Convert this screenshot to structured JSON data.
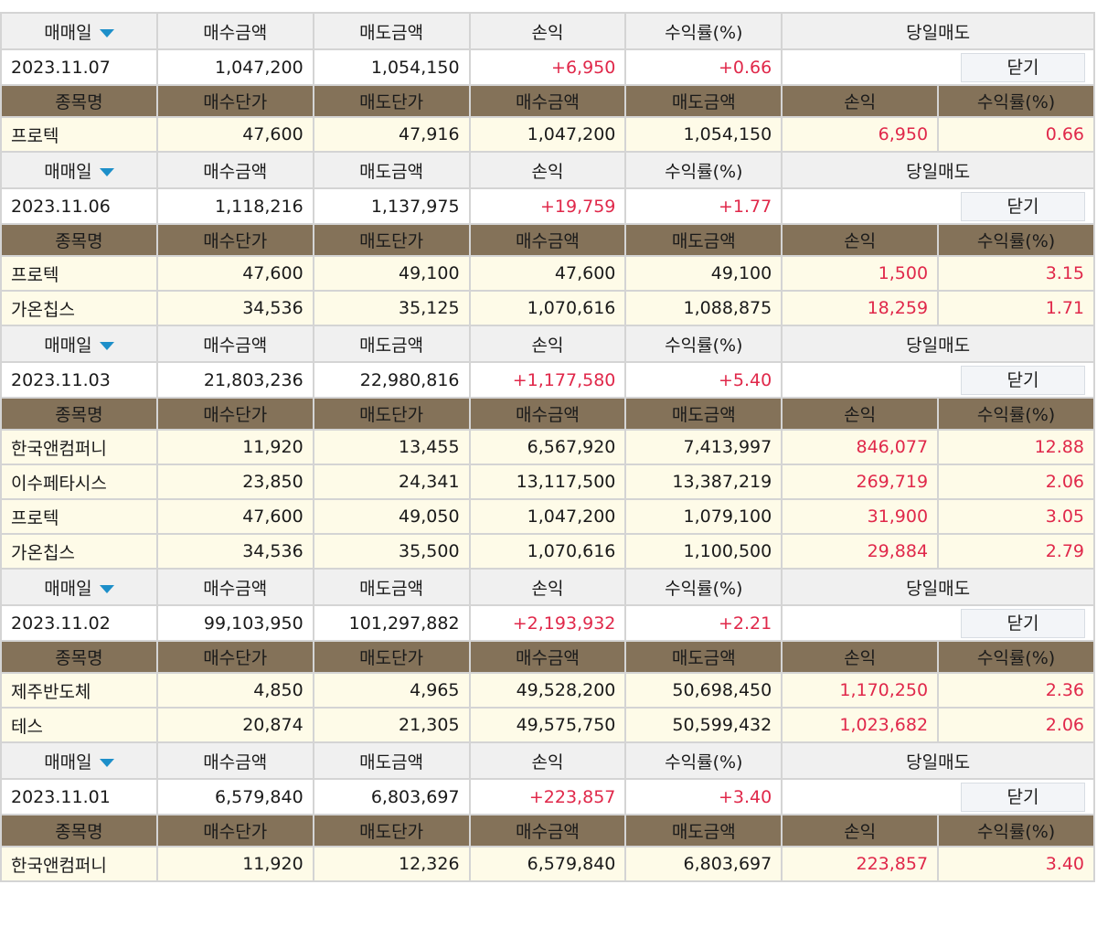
{
  "labels": {
    "trade_date": "매매일",
    "buy_amount": "매수금액",
    "sell_amount": "매도금액",
    "profit": "손익",
    "return_rate": "수익률(%)",
    "same_day_sell": "당일매도",
    "close": "닫기",
    "stock_name": "종목명",
    "buy_price": "매수단가",
    "sell_price": "매도단가"
  },
  "colors": {
    "header_brown": "#847259",
    "profit_red": "#e0284a",
    "sort_arrow": "#1d8fc9",
    "item_bg": "#fefbe8"
  },
  "groups": [
    {
      "date": "2023.11.07",
      "buy": "1,047,200",
      "sell": "1,054,150",
      "profit": "+6,950",
      "rate": "+0.66",
      "items": [
        [
          "프로텍",
          "47,600",
          "47,916",
          "1,047,200",
          "1,054,150",
          "6,950",
          "0.66"
        ]
      ]
    },
    {
      "date": "2023.11.06",
      "buy": "1,118,216",
      "sell": "1,137,975",
      "profit": "+19,759",
      "rate": "+1.77",
      "items": [
        [
          "프로텍",
          "47,600",
          "49,100",
          "47,600",
          "49,100",
          "1,500",
          "3.15"
        ],
        [
          "가온칩스",
          "34,536",
          "35,125",
          "1,070,616",
          "1,088,875",
          "18,259",
          "1.71"
        ]
      ]
    },
    {
      "date": "2023.11.03",
      "buy": "21,803,236",
      "sell": "22,980,816",
      "profit": "+1,177,580",
      "rate": "+5.40",
      "items": [
        [
          "한국앤컴퍼니",
          "11,920",
          "13,455",
          "6,567,920",
          "7,413,997",
          "846,077",
          "12.88"
        ],
        [
          "이수페타시스",
          "23,850",
          "24,341",
          "13,117,500",
          "13,387,219",
          "269,719",
          "2.06"
        ],
        [
          "프로텍",
          "47,600",
          "49,050",
          "1,047,200",
          "1,079,100",
          "31,900",
          "3.05"
        ],
        [
          "가온칩스",
          "34,536",
          "35,500",
          "1,070,616",
          "1,100,500",
          "29,884",
          "2.79"
        ]
      ]
    },
    {
      "date": "2023.11.02",
      "buy": "99,103,950",
      "sell": "101,297,882",
      "profit": "+2,193,932",
      "rate": "+2.21",
      "items": [
        [
          "제주반도체",
          "4,850",
          "4,965",
          "49,528,200",
          "50,698,450",
          "1,170,250",
          "2.36"
        ],
        [
          "테스",
          "20,874",
          "21,305",
          "49,575,750",
          "50,599,432",
          "1,023,682",
          "2.06"
        ]
      ]
    },
    {
      "date": "2023.11.01",
      "buy": "6,579,840",
      "sell": "6,803,697",
      "profit": "+223,857",
      "rate": "+3.40",
      "items": [
        [
          "한국앤컴퍼니",
          "11,920",
          "12,326",
          "6,579,840",
          "6,803,697",
          "223,857",
          "3.40"
        ]
      ]
    }
  ]
}
